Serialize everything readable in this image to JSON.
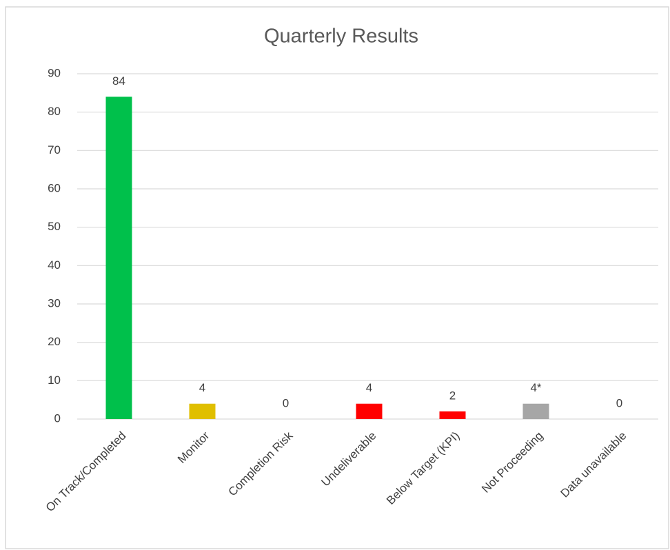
{
  "chart_data": {
    "type": "bar",
    "title": "Quarterly Results",
    "categories": [
      "On Track/Completed",
      "Monitor",
      "Completion Risk",
      "Undeliverable",
      "Below Target (KPI)",
      "Not Proceeding",
      "Data unavailable"
    ],
    "values": [
      84,
      4,
      0,
      4,
      2,
      4,
      0
    ],
    "value_labels": [
      "84",
      "4",
      "0",
      "4",
      "2",
      "4*",
      "0"
    ],
    "colors": [
      "#00c04b",
      "#e0bf00",
      null,
      "#ff0000",
      "#ff0000",
      "#a6a6a6",
      null
    ],
    "ylim": [
      0,
      90
    ],
    "yticks": [
      0,
      10,
      20,
      30,
      40,
      50,
      60,
      70,
      80,
      90
    ],
    "grid": true
  }
}
